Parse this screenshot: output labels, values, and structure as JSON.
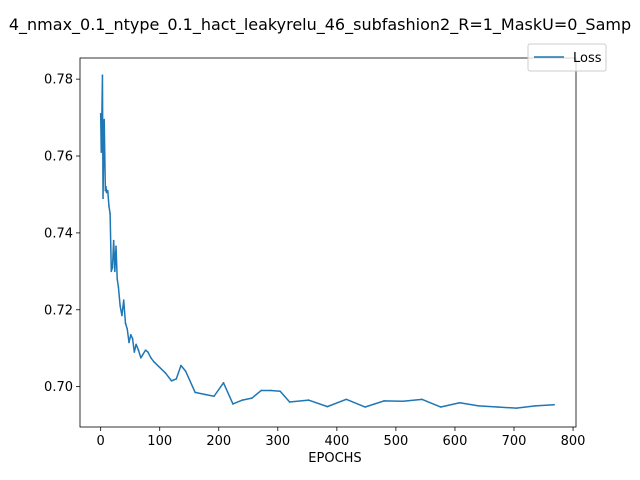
{
  "chart_data": {
    "type": "line",
    "title": "4_nmax_0.1_ntype_0.1_hact_leakyrelu_46_subfashion2_R=1_MaskU=0_Samp",
    "xlabel": "EPOCHS",
    "ylabel": "",
    "xlim": [
      -35,
      805
    ],
    "ylim": [
      0.6895,
      0.7855
    ],
    "xticks": [
      0,
      100,
      200,
      300,
      400,
      500,
      600,
      700,
      800
    ],
    "yticks": [
      0.7,
      0.72,
      0.74,
      0.76,
      0.78
    ],
    "ytick_labels": [
      "0.70",
      "0.72",
      "0.74",
      "0.76",
      "0.78"
    ],
    "legend_position": "top-right",
    "color": "#1f77b4",
    "series": [
      {
        "name": "Loss",
        "x": [
          0,
          1,
          2,
          3,
          4,
          5,
          6,
          7,
          8,
          9,
          10,
          12,
          14,
          16,
          18,
          20,
          22,
          24,
          26,
          28,
          30,
          33,
          36,
          39,
          42,
          45,
          48,
          51,
          54,
          57,
          60,
          64,
          68,
          72,
          76,
          80,
          85,
          90,
          100,
          110,
          120,
          128,
          136,
          144,
          160,
          176,
          192,
          208,
          224,
          240,
          256,
          272,
          288,
          304,
          320,
          352,
          384,
          416,
          448,
          480,
          512,
          544,
          576,
          608,
          640,
          672,
          704,
          736,
          768
        ],
        "values": [
          0.771,
          0.761,
          0.77,
          0.781,
          0.749,
          0.7605,
          0.7695,
          0.76,
          0.751,
          0.752,
          0.7505,
          0.751,
          0.747,
          0.745,
          0.73,
          0.731,
          0.738,
          0.73,
          0.7365,
          0.728,
          0.726,
          0.721,
          0.7185,
          0.7225,
          0.7165,
          0.715,
          0.7115,
          0.7135,
          0.7125,
          0.709,
          0.711,
          0.7095,
          0.7075,
          0.7085,
          0.7095,
          0.709,
          0.7075,
          0.7065,
          0.705,
          0.7035,
          0.7015,
          0.702,
          0.7055,
          0.704,
          0.6985,
          0.698,
          0.6975,
          0.701,
          0.6955,
          0.6965,
          0.697,
          0.699,
          0.699,
          0.6988,
          0.696,
          0.6965,
          0.6948,
          0.6967,
          0.6947,
          0.6963,
          0.6962,
          0.6967,
          0.6947,
          0.6958,
          0.695,
          0.6947,
          0.6944,
          0.695,
          0.6953
        ]
      }
    ]
  }
}
